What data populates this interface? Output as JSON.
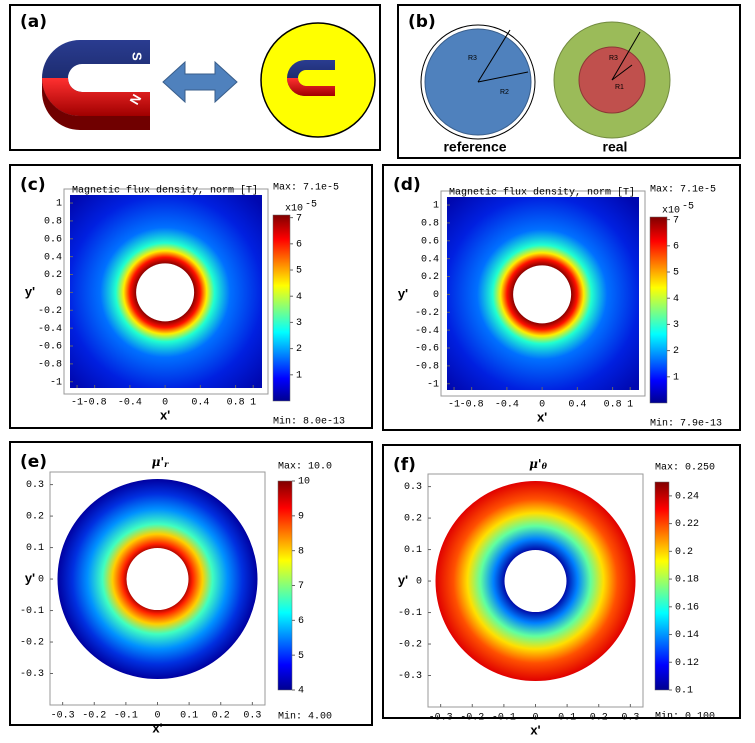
{
  "panels": [
    {
      "label": "(a)"
    },
    {
      "label": "(b)",
      "circle_labels": [
        "R3",
        "R2",
        "R3",
        "R1"
      ],
      "captions": [
        "reference",
        "real"
      ]
    },
    {
      "label": "(c)",
      "title": "Magnetic flux density, norm [T]",
      "max": "Max: 7.1e-5",
      "min": "Min: 8.0e-13",
      "xlabel": "x'",
      "ylabel": "y'",
      "xlim": [
        -1.08,
        1.1
      ],
      "ylim": [
        -1.07,
        1.09
      ],
      "xticks": [
        -1,
        -0.8,
        -0.4,
        0,
        0.4,
        0.8,
        1
      ],
      "yticks": [
        1,
        0.8,
        0.6,
        0.4,
        0.2,
        0,
        -0.2,
        -0.4,
        -0.6,
        -0.8,
        -1
      ],
      "colorbar_exponent": [
        "x10",
        "-5"
      ],
      "colorbar_lim": [
        0,
        7.1
      ],
      "colorbar_ticks": [
        1,
        2,
        3,
        4,
        5,
        6,
        7
      ]
    },
    {
      "label": "(d)",
      "title": "Magnetic flux density, norm [T]",
      "max": "Max: 7.1e-5",
      "min": "Min: 7.9e-13",
      "xlabel": "x'",
      "ylabel": "y'",
      "xlim": [
        -1.08,
        1.1
      ],
      "ylim": [
        -1.07,
        1.09
      ],
      "xticks": [
        -1,
        -0.8,
        -0.4,
        0,
        0.4,
        0.8,
        1
      ],
      "yticks": [
        1,
        0.8,
        0.6,
        0.4,
        0.2,
        0,
        -0.2,
        -0.4,
        -0.6,
        -0.8,
        -1
      ],
      "colorbar_exponent": [
        "x10",
        "-5"
      ],
      "colorbar_lim": [
        0,
        7.1
      ],
      "colorbar_ticks": [
        1,
        2,
        3,
        4,
        5,
        6,
        7
      ]
    },
    {
      "label": "(e)",
      "title": "μ'",
      "title_sub": "r",
      "max": "Max: 10.0",
      "min": "Min: 4.00",
      "xlabel": "x'",
      "ylabel": "y'",
      "xlim": [
        -0.34,
        0.34
      ],
      "ylim": [
        -0.4,
        0.34
      ],
      "xticks": [
        -0.3,
        -0.2,
        -0.1,
        0,
        0.1,
        0.2,
        0.3
      ],
      "yticks": [
        0.3,
        0.2,
        0.1,
        0,
        -0.1,
        -0.2,
        -0.3
      ],
      "colorbar_lim": [
        4,
        10
      ],
      "colorbar_ticks": [
        4,
        5,
        6,
        7,
        8,
        9,
        10
      ]
    },
    {
      "label": "(f)",
      "title": "μ'",
      "title_sub": "θ",
      "max": "Max: 0.250",
      "min": "Min: 0.100",
      "xlabel": "x'",
      "ylabel": "y'",
      "xlim": [
        -0.34,
        0.34
      ],
      "ylim": [
        -0.4,
        0.34
      ],
      "xticks": [
        -0.3,
        -0.2,
        -0.1,
        0,
        0.1,
        0.2,
        0.3
      ],
      "yticks": [
        0.3,
        0.2,
        0.1,
        0,
        -0.1,
        -0.2,
        -0.3
      ],
      "colorbar_lim": [
        0.1,
        0.25
      ],
      "colorbar_ticks": [
        0.1,
        0.12,
        0.14,
        0.16,
        0.18,
        0.2,
        0.22,
        0.24
      ]
    }
  ]
}
